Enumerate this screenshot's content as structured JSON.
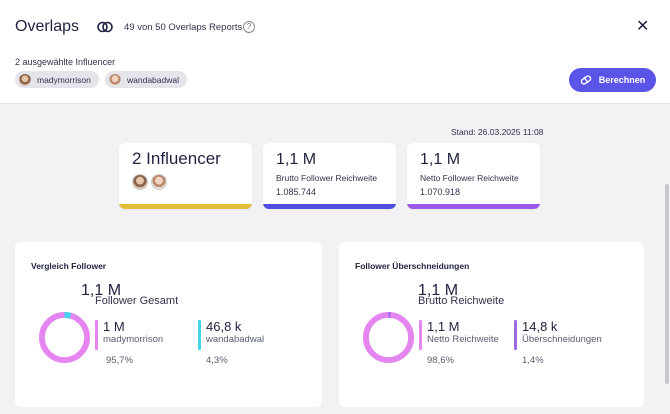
{
  "header": {
    "title": "Overlaps",
    "report_count": "49 von 50 Overlaps Reports",
    "help": "?",
    "close": "✕",
    "selected_label": "2 ausgewählte Influencer",
    "chips": [
      {
        "name": "madymorrison"
      },
      {
        "name": "wandabadwal"
      }
    ],
    "calculate_label": "Berechnen"
  },
  "stand": "Stand: 26.03.2025 11:08",
  "summary": {
    "influencers": "2 Influencer",
    "brutto": {
      "value": "1,1 M",
      "label": "Brutto Follower Reichweite",
      "number": "1.085.744"
    },
    "netto": {
      "value": "1,1 M",
      "label": "Netto Follower Reichweite",
      "number": "1.070.918"
    }
  },
  "colors": {
    "accent": "#5a54e8",
    "yellow": "#e2be3d",
    "blue": "#4f4ee0",
    "purple": "#9b5ae8",
    "pink": "#e586f0",
    "cyan": "#46d2e8",
    "violet": "#9b6ae6"
  },
  "vergleich": {
    "title": "Vergleich Follower",
    "total_value": "1,1 M",
    "total_label": "Follower Gesamt",
    "a": {
      "value": "1 M",
      "label": "madymorrison",
      "pct": "95,7%"
    },
    "b": {
      "value": "46,8 k",
      "label": "wandabadwal",
      "pct": "4,3%"
    },
    "share_a": 0.957
  },
  "ueberschneidung": {
    "title": "Follower Überschneidungen",
    "total_value": "1,1 M",
    "total_label": "Brutto Reichweite",
    "a": {
      "value": "1,1 M",
      "label": "Netto Reichweite",
      "pct": "98,6%"
    },
    "b": {
      "value": "14,8 k",
      "label": "Überschneidungen",
      "pct": "1,4%"
    },
    "share_a": 0.986
  }
}
